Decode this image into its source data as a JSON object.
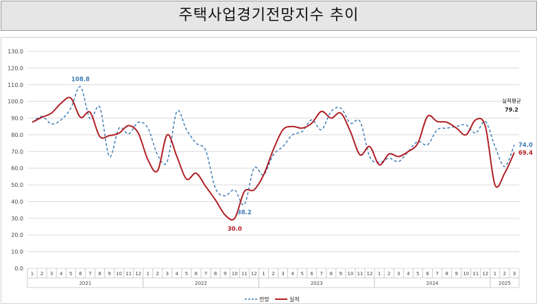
{
  "title": "주택사업경기전망지수 추이",
  "chart_data": {
    "type": "line",
    "title": "주택사업경기전망지수 추이",
    "ylim": [
      0,
      130
    ],
    "y_ticks": [
      "0.0",
      "10.0",
      "20.0",
      "30.0",
      "40.0",
      "50.0",
      "60.0",
      "70.0",
      "80.0",
      "90.0",
      "100.0",
      "110.0",
      "120.0",
      "130.0"
    ],
    "grid": true,
    "legend_position": "bottom",
    "x_month_labels": [
      "1",
      "2",
      "3",
      "4",
      "5",
      "6",
      "7",
      "8",
      "9",
      "10",
      "11",
      "12",
      "1",
      "2",
      "3",
      "4",
      "5",
      "6",
      "7",
      "8",
      "9",
      "10",
      "11",
      "12",
      "1",
      "2",
      "3",
      "4",
      "5",
      "6",
      "7",
      "8",
      "9",
      "10",
      "11",
      "12",
      "1",
      "2",
      "3",
      "4",
      "5",
      "6",
      "7",
      "8",
      "9",
      "10",
      "11",
      "12",
      "1",
      "2",
      "3"
    ],
    "year_groups": [
      {
        "label": "2021",
        "start": 0,
        "end": 11
      },
      {
        "label": "2022",
        "start": 12,
        "end": 23
      },
      {
        "label": "2023",
        "start": 24,
        "end": 35
      },
      {
        "label": "2024",
        "start": 36,
        "end": 47
      },
      {
        "label": "2025",
        "start": 48,
        "end": 50
      }
    ],
    "series": [
      {
        "name": "전망",
        "color": "#3e7bb5",
        "style": "dashed",
        "values": [
          87.5,
          91.0,
          86.5,
          89.0,
          96.0,
          108.8,
          89.5,
          96.6,
          67.0,
          84.0,
          80.5,
          87.5,
          84.0,
          68.0,
          64.0,
          94.0,
          83.0,
          75.0,
          70.5,
          48.0,
          43.5,
          47.0,
          38.2,
          60.0,
          56.0,
          68.0,
          73.0,
          80.0,
          82.0,
          89.0,
          83.0,
          94.0,
          96.0,
          87.0,
          88.0,
          67.0,
          63.5,
          66.0,
          64.0,
          70.0,
          76.0,
          74.0,
          83.0,
          84.0,
          85.0,
          86.0,
          81.0,
          88.0,
          73.0,
          61.0,
          74.0
        ]
      },
      {
        "name": "실적",
        "color": "#b01e23",
        "style": "solid",
        "values": [
          87.5,
          90.5,
          93.0,
          99.0,
          102.0,
          90.5,
          93.5,
          79.0,
          79.5,
          81.0,
          85.5,
          81.0,
          65.0,
          58.5,
          80.0,
          67.0,
          53.5,
          57.0,
          49.0,
          41.0,
          32.0,
          30.0,
          46.0,
          47.0,
          56.0,
          71.0,
          83.0,
          85.0,
          84.0,
          87.0,
          94.0,
          90.0,
          93.0,
          82.0,
          68.0,
          73.0,
          62.0,
          68.5,
          67.0,
          70.0,
          75.0,
          91.0,
          88.0,
          87.5,
          84.0,
          80.0,
          89.0,
          85.0,
          50.0,
          57.0,
          69.4
        ]
      }
    ],
    "annotations": [
      {
        "text": "108.8",
        "index": 5,
        "value": 108.8,
        "series": "전망"
      },
      {
        "text": "38.2",
        "index": 22,
        "value": 38.2,
        "series": "전망"
      },
      {
        "text": "30.0",
        "index": 21,
        "value": 30.0,
        "series": "실적"
      },
      {
        "text": "74.0",
        "index": 50,
        "value": 74.0,
        "series": "전망"
      },
      {
        "text": "69.4",
        "index": 50,
        "value": 69.4,
        "series": "실적"
      }
    ],
    "average_label": "실적평균",
    "average_value": "79.2"
  }
}
